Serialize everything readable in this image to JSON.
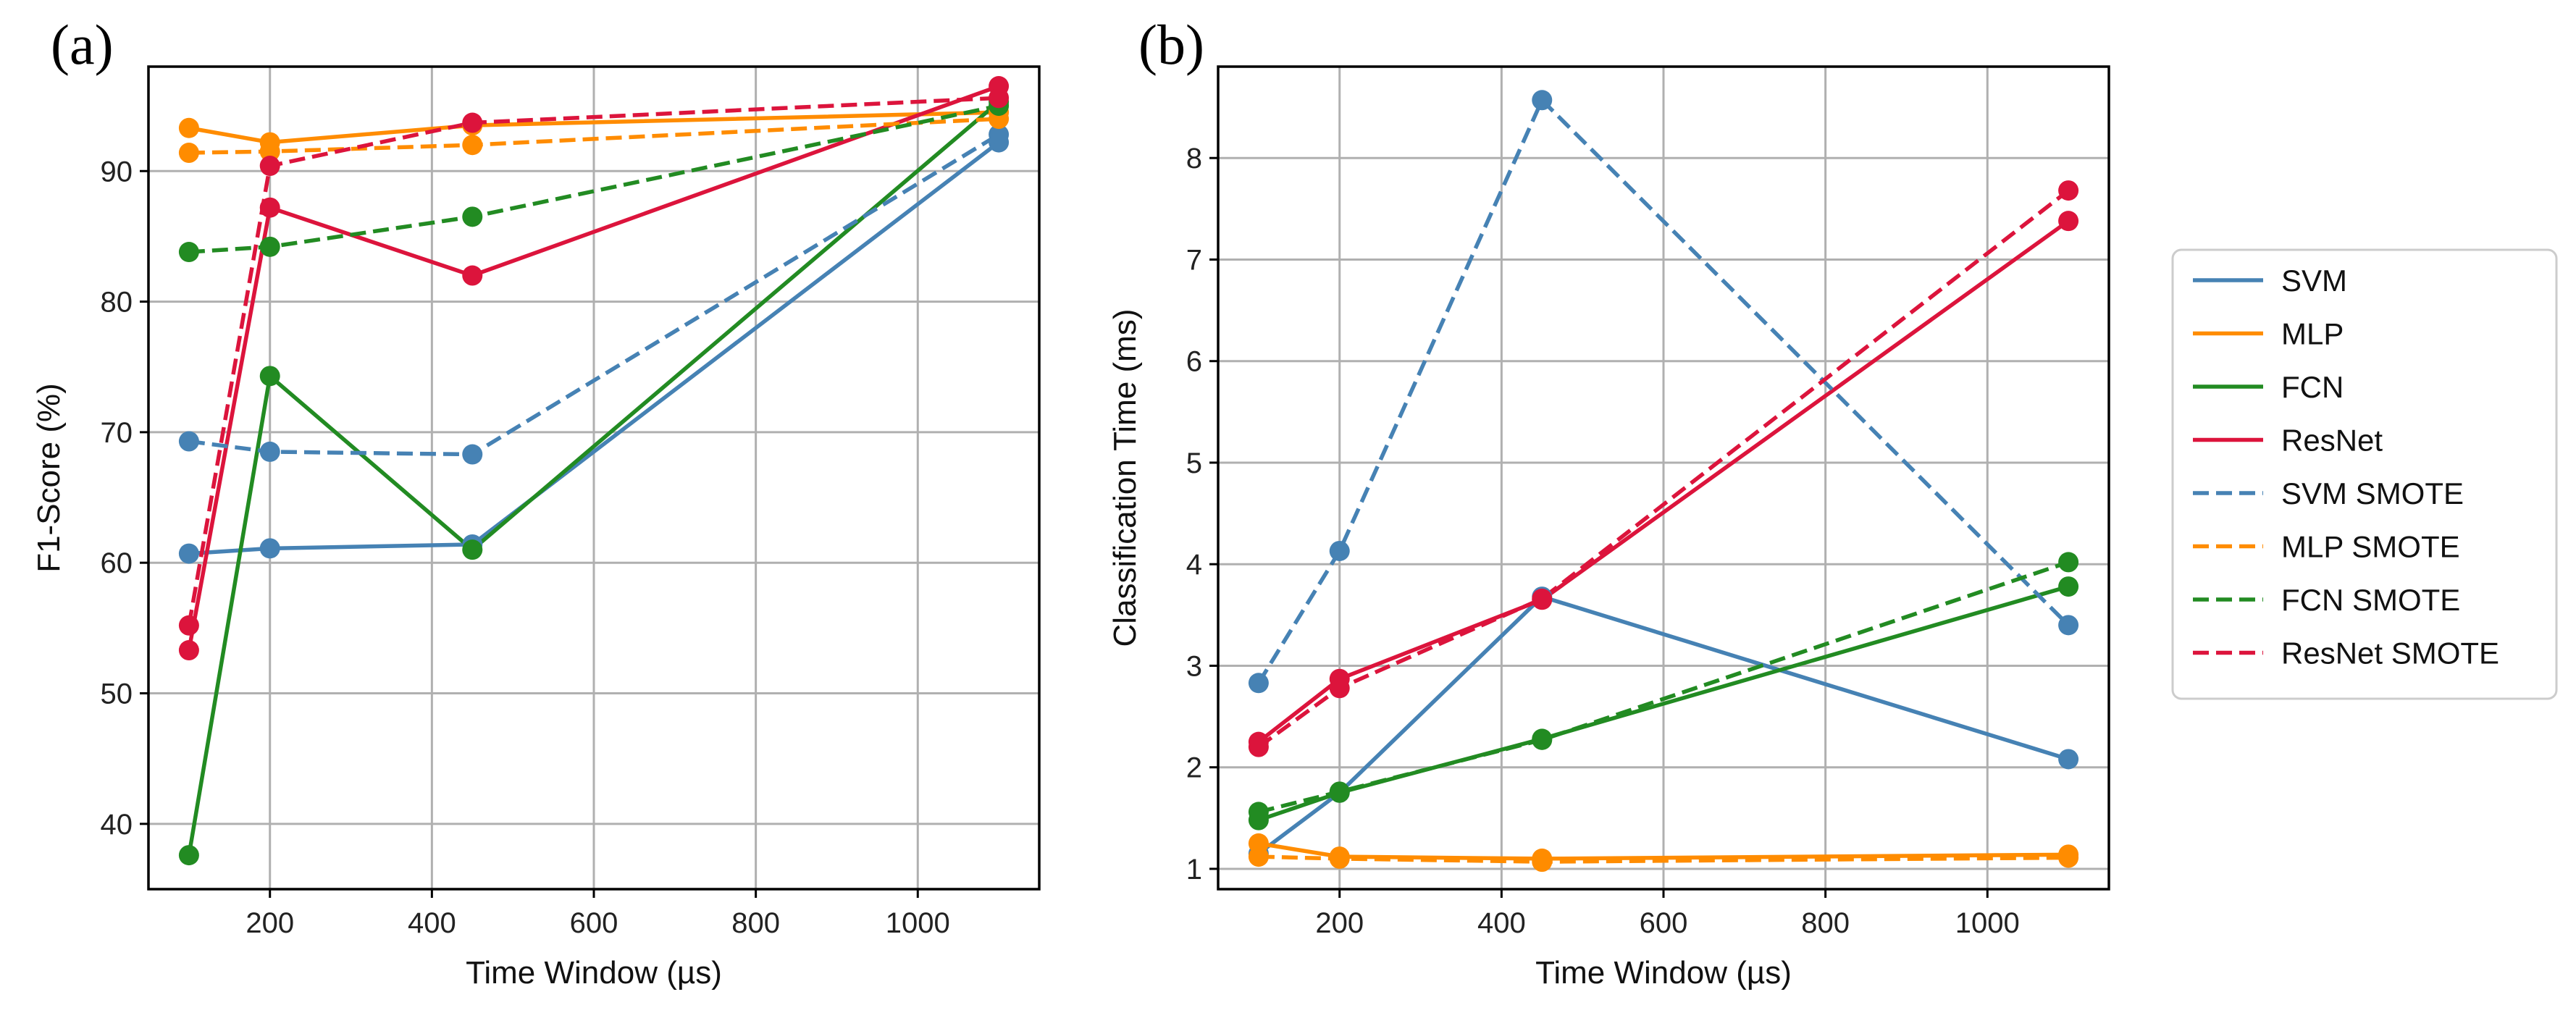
{
  "chart_data": [
    {
      "type": "line",
      "panel_label": "(a)",
      "title": "",
      "xlabel": "Time Window (µs)",
      "ylabel": "F1-Score (%)",
      "xlim": [
        50,
        1150
      ],
      "ylim": [
        35,
        98
      ],
      "xticks": [
        200,
        400,
        600,
        800,
        1000
      ],
      "yticks": [
        40,
        50,
        60,
        70,
        80,
        90
      ],
      "grid": true,
      "x": [
        100,
        200,
        450,
        1100
      ],
      "series": [
        {
          "name": "SVM",
          "color": "#4682b4",
          "dash": "solid",
          "values": [
            60.7,
            61.1,
            61.4,
            92.2
          ]
        },
        {
          "name": "MLP",
          "color": "#ff8c00",
          "dash": "solid",
          "values": [
            93.3,
            92.2,
            93.5,
            94.5
          ]
        },
        {
          "name": "FCN",
          "color": "#228b22",
          "dash": "solid",
          "values": [
            37.6,
            74.3,
            61.0,
            95.3
          ]
        },
        {
          "name": "ResNet",
          "color": "#dc143c",
          "dash": "solid",
          "values": [
            53.3,
            87.2,
            82.0,
            96.5
          ]
        },
        {
          "name": "SVM SMOTE",
          "color": "#4682b4",
          "dash": "dashed",
          "values": [
            69.3,
            68.5,
            68.3,
            92.8
          ]
        },
        {
          "name": "MLP SMOTE",
          "color": "#ff8c00",
          "dash": "dashed",
          "values": [
            91.4,
            91.5,
            92.0,
            94.0
          ]
        },
        {
          "name": "FCN SMOTE",
          "color": "#228b22",
          "dash": "dashed",
          "values": [
            83.8,
            84.2,
            86.5,
            95.0
          ]
        },
        {
          "name": "ResNet SMOTE",
          "color": "#dc143c",
          "dash": "dashed",
          "values": [
            55.2,
            90.4,
            93.7,
            95.6
          ]
        }
      ]
    },
    {
      "type": "line",
      "panel_label": "(b)",
      "title": "",
      "xlabel": "Time Window (µs)",
      "ylabel": "Classification Time (ms)",
      "xlim": [
        50,
        1150
      ],
      "ylim": [
        0.8,
        8.9
      ],
      "xticks": [
        200,
        400,
        600,
        800,
        1000
      ],
      "yticks": [
        1,
        2,
        3,
        4,
        5,
        6,
        7,
        8
      ],
      "grid": true,
      "x": [
        100,
        200,
        450,
        1100
      ],
      "series": [
        {
          "name": "SVM",
          "color": "#4682b4",
          "dash": "solid",
          "values": [
            1.15,
            1.75,
            3.68,
            2.08
          ]
        },
        {
          "name": "MLP",
          "color": "#ff8c00",
          "dash": "solid",
          "values": [
            1.25,
            1.12,
            1.1,
            1.14
          ]
        },
        {
          "name": "FCN",
          "color": "#228b22",
          "dash": "solid",
          "values": [
            1.48,
            1.75,
            2.28,
            3.78
          ]
        },
        {
          "name": "ResNet",
          "color": "#dc143c",
          "dash": "solid",
          "values": [
            2.25,
            2.87,
            3.65,
            7.38
          ]
        },
        {
          "name": "SVM SMOTE",
          "color": "#4682b4",
          "dash": "dashed",
          "values": [
            2.83,
            4.13,
            8.57,
            3.4
          ]
        },
        {
          "name": "MLP SMOTE",
          "color": "#ff8c00",
          "dash": "dashed",
          "values": [
            1.12,
            1.1,
            1.07,
            1.11
          ]
        },
        {
          "name": "FCN SMOTE",
          "color": "#228b22",
          "dash": "dashed",
          "values": [
            1.56,
            1.76,
            2.27,
            4.02
          ]
        },
        {
          "name": "ResNet SMOTE",
          "color": "#dc143c",
          "dash": "dashed",
          "values": [
            2.2,
            2.78,
            3.66,
            7.68
          ]
        }
      ]
    }
  ],
  "legend": {
    "placement": "right",
    "items": [
      {
        "label": "SVM",
        "color": "#4682b4",
        "dash": "solid"
      },
      {
        "label": "MLP",
        "color": "#ff8c00",
        "dash": "solid"
      },
      {
        "label": "FCN",
        "color": "#228b22",
        "dash": "solid"
      },
      {
        "label": "ResNet",
        "color": "#dc143c",
        "dash": "solid"
      },
      {
        "label": "SVM SMOTE",
        "color": "#4682b4",
        "dash": "dashed"
      },
      {
        "label": "MLP SMOTE",
        "color": "#ff8c00",
        "dash": "dashed"
      },
      {
        "label": "FCN SMOTE",
        "color": "#228b22",
        "dash": "dashed"
      },
      {
        "label": "ResNet SMOTE",
        "color": "#dc143c",
        "dash": "dashed"
      }
    ]
  }
}
